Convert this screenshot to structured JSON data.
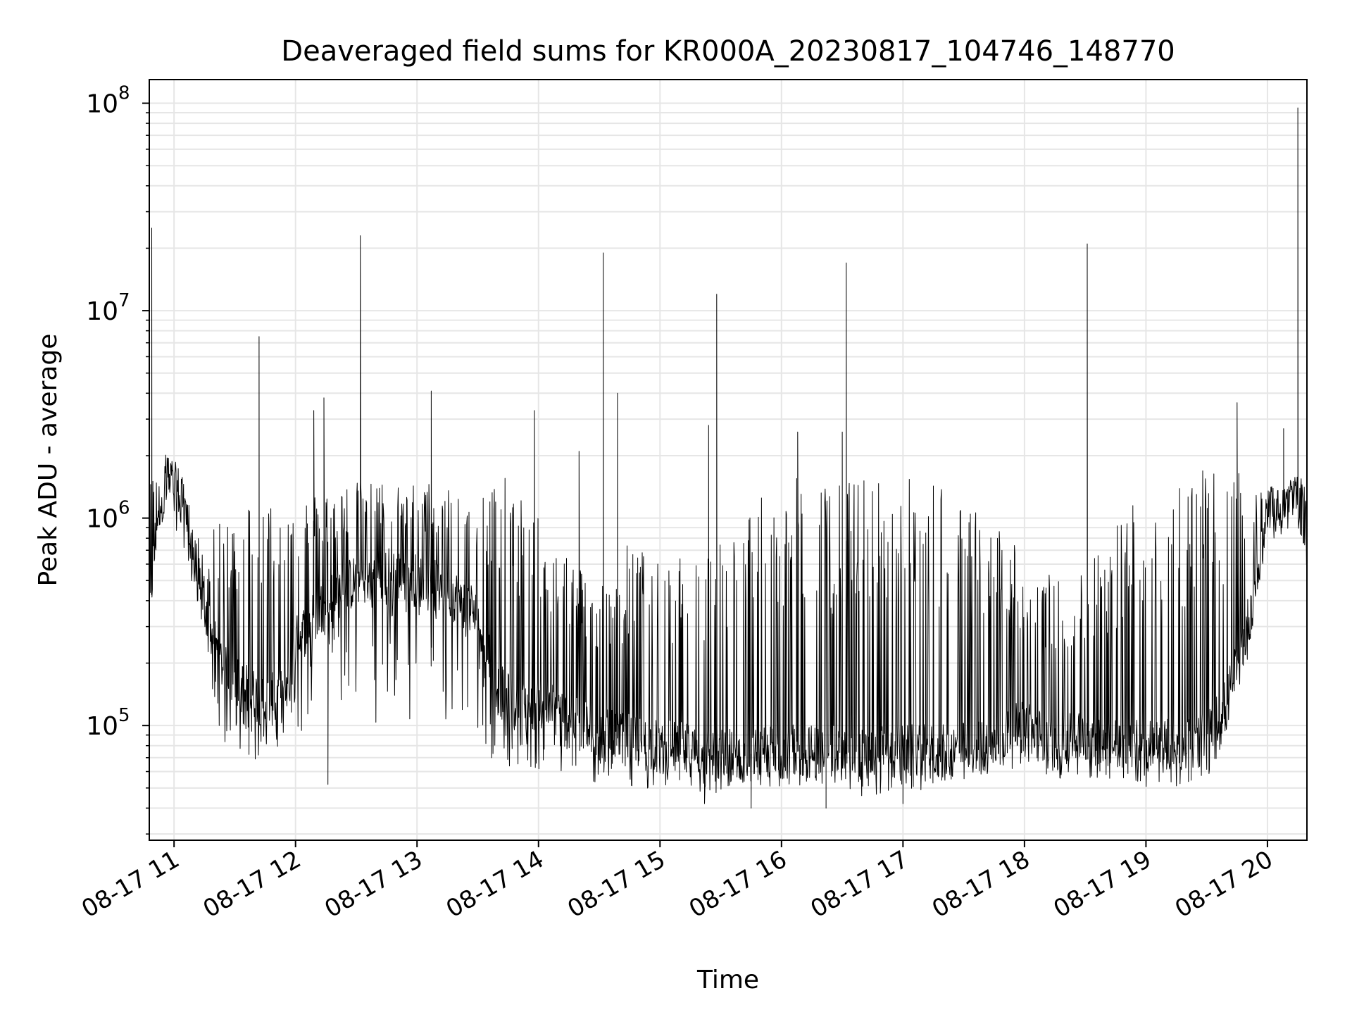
{
  "chart_data": {
    "type": "line",
    "title": "Deaveraged field sums for KR000A_20230817_104746_148770",
    "xlabel": "Time",
    "ylabel": "Peak ADU - average",
    "yscale": "log",
    "ylim": [
      28000,
      130000000
    ],
    "xlim": [
      "2023-08-17 10:47:46",
      "2023-08-17 20:19:30"
    ],
    "x_ticks": [
      {
        "t": "2023-08-17 11:00",
        "label": "08-17 11"
      },
      {
        "t": "2023-08-17 12:00",
        "label": "08-17 12"
      },
      {
        "t": "2023-08-17 13:00",
        "label": "08-17 13"
      },
      {
        "t": "2023-08-17 14:00",
        "label": "08-17 14"
      },
      {
        "t": "2023-08-17 15:00",
        "label": "08-17 15"
      },
      {
        "t": "2023-08-17 16:00",
        "label": "08-17 16"
      },
      {
        "t": "2023-08-17 17:00",
        "label": "08-17 17"
      },
      {
        "t": "2023-08-17 18:00",
        "label": "08-17 18"
      },
      {
        "t": "2023-08-17 19:00",
        "label": "08-17 19"
      },
      {
        "t": "2023-08-17 20:00",
        "label": "08-17 20"
      }
    ],
    "y_ticks": [
      {
        "value": 100000,
        "base": "10",
        "exp": "5"
      },
      {
        "value": 1000000,
        "base": "10",
        "exp": "6"
      },
      {
        "value": 10000000,
        "base": "10",
        "exp": "7"
      },
      {
        "value": 100000000,
        "base": "10",
        "exp": "8"
      }
    ],
    "grid": true,
    "line_color": "#000000",
    "grid_color": "#e6e6e6",
    "series": [
      {
        "x": [
          "2023-08-17 10:47:46",
          "2023-08-17 10:52:00",
          "2023-08-17 10:56:00",
          "2023-08-17 11:00:00",
          "2023-08-17 11:04:00",
          "2023-08-17 11:08:00",
          "2023-08-17 11:15:00",
          "2023-08-17 11:20:00",
          "2023-08-17 11:25:00",
          "2023-08-17 11:35:00",
          "2023-08-17 11:45:00",
          "2023-08-17 11:55:00",
          "2023-08-17 12:00:00",
          "2023-08-17 12:15:00",
          "2023-08-17 12:30:00",
          "2023-08-17 12:45:00",
          "2023-08-17 13:00:00",
          "2023-08-17 13:15:00",
          "2023-08-17 13:30:00",
          "2023-08-17 13:40:00",
          "2023-08-17 13:50:00",
          "2023-08-17 14:00:00",
          "2023-08-17 14:15:00",
          "2023-08-17 14:30:00",
          "2023-08-17 14:45:00",
          "2023-08-17 15:00:00",
          "2023-08-17 15:20:00",
          "2023-08-17 15:40:00",
          "2023-08-17 16:00:00",
          "2023-08-17 16:20:00",
          "2023-08-17 16:40:00",
          "2023-08-17 17:00:00",
          "2023-08-17 17:20:00",
          "2023-08-17 17:40:00",
          "2023-08-17 18:00:00",
          "2023-08-17 18:15:00",
          "2023-08-17 18:30:00",
          "2023-08-17 18:45:00",
          "2023-08-17 19:00:00",
          "2023-08-17 19:15:00",
          "2023-08-17 19:30:00",
          "2023-08-17 19:40:00",
          "2023-08-17 19:50:00",
          "2023-08-17 20:00:00",
          "2023-08-17 20:10:00",
          "2023-08-17 20:15:00",
          "2023-08-17 20:19:30"
        ],
        "base": [
          350000,
          1100000,
          1500000,
          1400000,
          1300000,
          800000,
          350000,
          250000,
          180000,
          150000,
          130000,
          140000,
          250000,
          400000,
          500000,
          550000,
          500000,
          450000,
          350000,
          150000,
          120000,
          130000,
          110000,
          90000,
          85000,
          80000,
          75000,
          72000,
          75000,
          75000,
          72000,
          75000,
          75000,
          80000,
          100000,
          80000,
          90000,
          85000,
          80000,
          80000,
          85000,
          130000,
          300000,
          1000000,
          1100000,
          1200000,
          900000
        ],
        "top": [
          1500000,
          2000000,
          2200000,
          1800000,
          1600000,
          1000000,
          700000,
          900000,
          1000000,
          1300000,
          1300000,
          1300000,
          1300000,
          1400000,
          1500000,
          1500000,
          1500000,
          1500000,
          1500000,
          1600000,
          1500000,
          1000000,
          700000,
          500000,
          800000,
          600000,
          700000,
          1000000,
          1600000,
          1500000,
          1600000,
          1600000,
          1600000,
          1000000,
          800000,
          500000,
          600000,
          1000000,
          1600000,
          1700000,
          1700000,
          1700000,
          1600000,
          1400000,
          1500000,
          1600000,
          1500000
        ],
        "bottom": [
          300000,
          900000,
          1000000,
          900000,
          800000,
          500000,
          250000,
          120000,
          80000,
          70000,
          65000,
          80000,
          90000,
          100000,
          110000,
          100000,
          100000,
          90000,
          80000,
          60000,
          65000,
          60000,
          55000,
          50000,
          48000,
          50000,
          45000,
          45000,
          50000,
          50000,
          45000,
          48000,
          50000,
          55000,
          65000,
          55000,
          55000,
          55000,
          50000,
          50000,
          55000,
          90000,
          200000,
          900000,
          1000000,
          1000000,
          500000
        ],
        "spikes": [
          {
            "t": "2023-08-17 10:49:00",
            "v": 25000000
          },
          {
            "t": "2023-08-17 11:42:00",
            "v": 7500000
          },
          {
            "t": "2023-08-17 12:09:00",
            "v": 3300000
          },
          {
            "t": "2023-08-17 12:14:00",
            "v": 3800000
          },
          {
            "t": "2023-08-17 12:32:00",
            "v": 23000000
          },
          {
            "t": "2023-08-17 13:07:00",
            "v": 4100000
          },
          {
            "t": "2023-08-17 13:58:00",
            "v": 3300000
          },
          {
            "t": "2023-08-17 14:20:00",
            "v": 2100000
          },
          {
            "t": "2023-08-17 14:32:00",
            "v": 19000000
          },
          {
            "t": "2023-08-17 14:39:00",
            "v": 4000000
          },
          {
            "t": "2023-08-17 15:24:00",
            "v": 2800000
          },
          {
            "t": "2023-08-17 15:28:00",
            "v": 12000000
          },
          {
            "t": "2023-08-17 16:08:00",
            "v": 2600000
          },
          {
            "t": "2023-08-17 16:30:00",
            "v": 2600000
          },
          {
            "t": "2023-08-17 16:32:00",
            "v": 17000000
          },
          {
            "t": "2023-08-17 18:31:00",
            "v": 21000000
          },
          {
            "t": "2023-08-17 19:45:00",
            "v": 3600000
          },
          {
            "t": "2023-08-17 20:08:00",
            "v": 2700000
          },
          {
            "t": "2023-08-17 20:15:00",
            "v": 95000000
          }
        ],
        "dips": [
          {
            "t": "2023-08-17 12:16:00",
            "v": 52000
          },
          {
            "t": "2023-08-17 15:22:00",
            "v": 42000
          },
          {
            "t": "2023-08-17 15:45:00",
            "v": 40000
          },
          {
            "t": "2023-08-17 16:22:00",
            "v": 40000
          },
          {
            "t": "2023-08-17 17:00:00",
            "v": 42000
          }
        ]
      }
    ]
  }
}
